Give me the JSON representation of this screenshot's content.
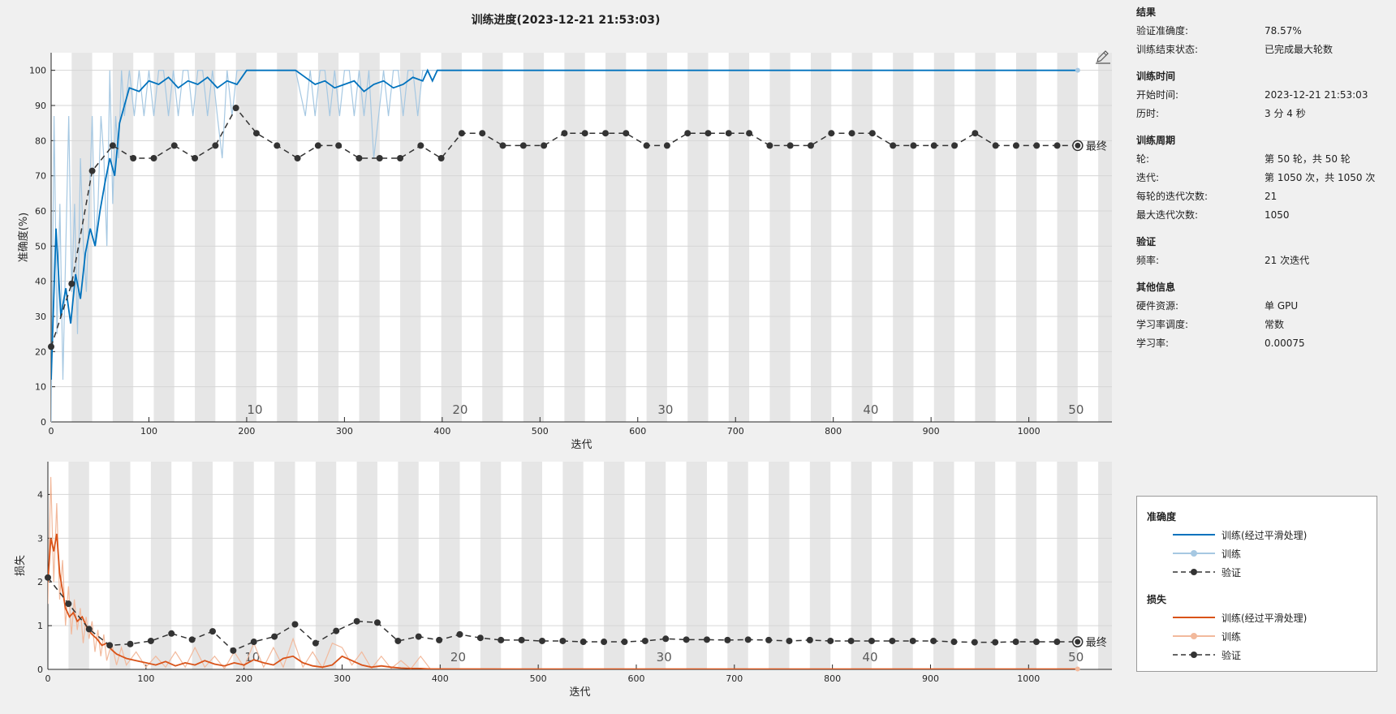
{
  "title": "训练进度(2023-12-21 21:53:03)",
  "colors": {
    "train_smoothed_acc": "#0072bd",
    "train_raw_acc": "#a6c8e2",
    "train_smoothed_loss": "#d95319",
    "train_raw_loss": "#f2b99c",
    "validation": "#333333",
    "stripe": "#e6e6e6",
    "panel_bg": "#f0f0f0"
  },
  "info": {
    "sections": [
      {
        "heading": "结果",
        "rows": [
          [
            "验证准确度:",
            "78.57%"
          ],
          [
            "训练结束状态:",
            "已完成最大轮数"
          ]
        ]
      },
      {
        "heading": "训练时间",
        "rows": [
          [
            "开始时间:",
            "2023-12-21 21:53:03"
          ],
          [
            "历时:",
            "3 分 4 秒"
          ]
        ]
      },
      {
        "heading": "训练周期",
        "rows": [
          [
            "轮:",
            "第 50 轮，共 50 轮"
          ],
          [
            "迭代:",
            "第 1050 次，共 1050 次"
          ],
          [
            "每轮的迭代次数:",
            "21"
          ],
          [
            "最大迭代次数:",
            "1050"
          ]
        ]
      },
      {
        "heading": "验证",
        "rows": [
          [
            "频率:",
            "21 次迭代"
          ]
        ]
      },
      {
        "heading": "其他信息",
        "rows": [
          [
            "硬件资源:",
            "单 GPU"
          ],
          [
            "学习率调度:",
            "常数"
          ],
          [
            "学习率:",
            "0.00075"
          ]
        ]
      }
    ]
  },
  "legend": {
    "accuracy_title": "准确度",
    "loss_title": "损失",
    "smoothed_label": "训练(经过平滑处理)",
    "train_label": "训练",
    "validation_label": "验证"
  },
  "chart_data": [
    {
      "type": "line",
      "name": "accuracy",
      "xlabel": "迭代",
      "ylabel": "准确度(%)",
      "xlim": [
        0,
        1085
      ],
      "ylim": [
        0,
        105
      ],
      "xticks": [
        0,
        100,
        200,
        300,
        400,
        500,
        600,
        700,
        800,
        900,
        1000
      ],
      "yticks": [
        0,
        10,
        20,
        30,
        40,
        50,
        60,
        70,
        80,
        90,
        100
      ],
      "iterations_per_epoch": 21,
      "epoch_labels": [
        10,
        20,
        30,
        40,
        50
      ],
      "final_label": "最终",
      "smoothed_train": {
        "x": [
          0,
          5,
          10,
          15,
          20,
          25,
          30,
          35,
          40,
          45,
          50,
          55,
          60,
          65,
          70,
          75,
          80,
          90,
          100,
          110,
          120,
          130,
          140,
          150,
          160,
          170,
          180,
          190,
          200,
          210,
          220,
          230,
          240,
          250,
          260,
          270,
          280,
          290,
          300,
          310,
          320,
          330,
          340,
          350,
          360,
          370,
          380,
          385,
          390,
          395,
          400,
          500,
          600,
          700,
          800,
          900,
          1000,
          1050
        ],
        "y": [
          12,
          55,
          30,
          38,
          28,
          42,
          35,
          48,
          55,
          50,
          60,
          68,
          75,
          70,
          85,
          90,
          95,
          94,
          97,
          96,
          98,
          95,
          97,
          96,
          98,
          95,
          97,
          96,
          100,
          100,
          100,
          100,
          100,
          100,
          98,
          96,
          97,
          95,
          96,
          97,
          94,
          96,
          97,
          95,
          96,
          98,
          97,
          100,
          97,
          100,
          100,
          100,
          100,
          100,
          100,
          100,
          100,
          100
        ]
      },
      "raw_train": {
        "x": [
          0,
          3,
          6,
          9,
          12,
          15,
          18,
          21,
          24,
          27,
          30,
          33,
          36,
          39,
          42,
          45,
          48,
          51,
          54,
          57,
          60,
          63,
          66,
          69,
          72,
          75,
          80,
          85,
          90,
          95,
          100,
          105,
          110,
          115,
          120,
          125,
          130,
          135,
          140,
          145,
          150,
          155,
          160,
          165,
          170,
          175,
          180,
          185,
          190,
          195,
          200,
          210,
          220,
          230,
          240,
          250,
          260,
          265,
          270,
          275,
          280,
          285,
          290,
          295,
          300,
          305,
          310,
          315,
          320,
          325,
          330,
          335,
          340,
          345,
          350,
          355,
          360,
          365,
          370,
          375,
          380,
          1050
        ],
        "y": [
          0,
          87,
          25,
          62,
          12,
          50,
          87,
          37,
          62,
          25,
          75,
          50,
          37,
          62,
          87,
          50,
          62,
          87,
          75,
          50,
          100,
          62,
          87,
          75,
          100,
          87,
          100,
          87,
          100,
          87,
          100,
          87,
          100,
          100,
          87,
          100,
          87,
          100,
          100,
          87,
          100,
          100,
          87,
          100,
          87,
          75,
          100,
          87,
          100,
          100,
          100,
          100,
          100,
          100,
          100,
          100,
          87,
          100,
          87,
          100,
          100,
          87,
          100,
          87,
          100,
          100,
          87,
          100,
          87,
          100,
          75,
          87,
          100,
          87,
          100,
          100,
          87,
          100,
          100,
          87,
          100,
          100
        ]
      },
      "validation": {
        "x": [
          0,
          21,
          42,
          63,
          84,
          105,
          126,
          147,
          168,
          189,
          210,
          231,
          252,
          273,
          294,
          315,
          336,
          357,
          378,
          399,
          420,
          441,
          462,
          483,
          504,
          525,
          546,
          567,
          588,
          609,
          630,
          651,
          672,
          693,
          714,
          735,
          756,
          777,
          798,
          819,
          840,
          861,
          882,
          903,
          924,
          945,
          966,
          987,
          1008,
          1029,
          1050
        ],
        "y": [
          21.4,
          39.3,
          71.4,
          78.6,
          75,
          75,
          78.6,
          75,
          78.6,
          89.3,
          82.1,
          78.6,
          75,
          78.6,
          78.6,
          75,
          75,
          75,
          78.6,
          75,
          82.1,
          82.1,
          78.6,
          78.6,
          78.6,
          82.1,
          82.1,
          82.1,
          82.1,
          78.6,
          78.6,
          82.1,
          82.1,
          82.1,
          82.1,
          78.6,
          78.6,
          78.6,
          82.1,
          82.1,
          82.1,
          78.6,
          78.6,
          78.6,
          78.6,
          82.1,
          78.6,
          78.6,
          78.6,
          78.6,
          78.6
        ]
      }
    },
    {
      "type": "line",
      "name": "loss",
      "xlabel": "迭代",
      "ylabel": "损失",
      "xlim": [
        0,
        1085
      ],
      "ylim": [
        0,
        4.75
      ],
      "xticks": [
        0,
        100,
        200,
        300,
        400,
        500,
        600,
        700,
        800,
        900,
        1000
      ],
      "yticks": [
        0,
        1,
        2,
        3,
        4
      ],
      "iterations_per_epoch": 21,
      "epoch_labels": [
        10,
        20,
        30,
        40,
        50
      ],
      "final_label": "最终",
      "smoothed_train": {
        "x": [
          0,
          3,
          6,
          9,
          12,
          15,
          18,
          22,
          26,
          30,
          35,
          40,
          45,
          50,
          55,
          60,
          65,
          70,
          75,
          80,
          90,
          100,
          110,
          120,
          130,
          140,
          150,
          160,
          170,
          180,
          190,
          200,
          210,
          220,
          230,
          240,
          250,
          260,
          270,
          280,
          290,
          300,
          310,
          320,
          330,
          340,
          350,
          360,
          370,
          380,
          390,
          400,
          500,
          1050
        ],
        "y": [
          2.0,
          3.0,
          2.7,
          3.1,
          2.2,
          1.8,
          1.4,
          1.2,
          1.3,
          1.1,
          1.2,
          0.95,
          0.8,
          0.7,
          0.55,
          0.6,
          0.45,
          0.35,
          0.3,
          0.25,
          0.2,
          0.15,
          0.1,
          0.18,
          0.08,
          0.15,
          0.1,
          0.2,
          0.12,
          0.08,
          0.15,
          0.1,
          0.22,
          0.15,
          0.1,
          0.25,
          0.3,
          0.15,
          0.08,
          0.05,
          0.1,
          0.3,
          0.2,
          0.1,
          0.05,
          0.08,
          0.05,
          0.03,
          0.02,
          0.02,
          0.01,
          0.01,
          0.005,
          0.005
        ]
      },
      "raw_train": {
        "x": [
          0,
          3,
          6,
          9,
          12,
          15,
          18,
          21,
          24,
          27,
          30,
          33,
          36,
          39,
          42,
          45,
          48,
          51,
          54,
          57,
          60,
          65,
          70,
          75,
          80,
          90,
          100,
          110,
          120,
          130,
          140,
          150,
          160,
          170,
          180,
          190,
          200,
          210,
          220,
          230,
          240,
          250,
          260,
          270,
          280,
          290,
          300,
          310,
          320,
          330,
          340,
          350,
          360,
          370,
          380,
          390,
          1050
        ],
        "y": [
          1.5,
          4.4,
          2.0,
          3.8,
          1.6,
          2.5,
          1.0,
          1.9,
          0.8,
          1.6,
          0.9,
          1.4,
          0.6,
          1.2,
          0.7,
          1.1,
          0.4,
          0.9,
          0.3,
          0.8,
          0.2,
          0.6,
          0.1,
          0.5,
          0.1,
          0.4,
          0.05,
          0.3,
          0.05,
          0.4,
          0.05,
          0.5,
          0.05,
          0.3,
          0.02,
          0.4,
          0.05,
          0.6,
          0.05,
          0.5,
          0.05,
          0.7,
          0.05,
          0.4,
          0.03,
          0.6,
          0.5,
          0.1,
          0.4,
          0.02,
          0.3,
          0.02,
          0.2,
          0.01,
          0.3,
          0.01,
          0.01
        ]
      },
      "validation": {
        "x": [
          0,
          21,
          42,
          63,
          84,
          105,
          126,
          147,
          168,
          189,
          210,
          231,
          252,
          273,
          294,
          315,
          336,
          357,
          378,
          399,
          420,
          441,
          462,
          483,
          504,
          525,
          546,
          567,
          588,
          609,
          630,
          651,
          672,
          693,
          714,
          735,
          756,
          777,
          798,
          819,
          840,
          861,
          882,
          903,
          924,
          945,
          966,
          987,
          1008,
          1029,
          1050
        ],
        "y": [
          2.1,
          1.5,
          0.92,
          0.55,
          0.58,
          0.65,
          0.82,
          0.68,
          0.87,
          0.43,
          0.63,
          0.75,
          1.03,
          0.6,
          0.88,
          1.1,
          1.07,
          0.65,
          0.75,
          0.67,
          0.8,
          0.72,
          0.67,
          0.67,
          0.65,
          0.65,
          0.63,
          0.63,
          0.63,
          0.65,
          0.7,
          0.68,
          0.68,
          0.67,
          0.68,
          0.67,
          0.65,
          0.67,
          0.65,
          0.65,
          0.65,
          0.65,
          0.65,
          0.65,
          0.63,
          0.62,
          0.62,
          0.63,
          0.63,
          0.63,
          0.63
        ]
      }
    }
  ]
}
